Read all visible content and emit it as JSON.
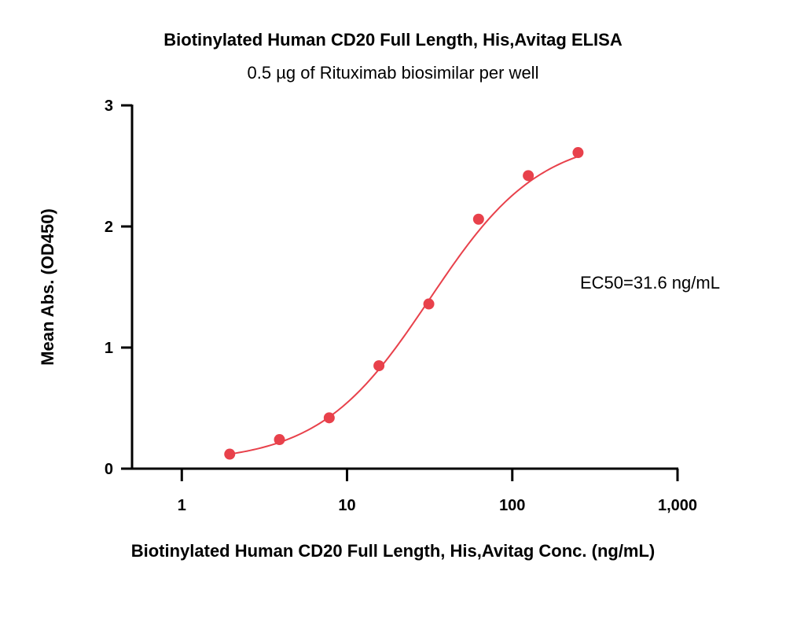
{
  "chart_data": {
    "type": "scatter",
    "title": "Biotinylated Human CD20 Full Length, His,Avitag ELISA",
    "subtitle": "0.5 µg of Rituximab biosimilar per well",
    "xlabel": "Biotinylated Human CD20 Full Length, His,Avitag Conc. (ng/mL)",
    "ylabel": "Mean Abs. (OD450)",
    "x_scale": "log",
    "xlim": [
      0.5,
      1000
    ],
    "ylim": [
      0,
      3
    ],
    "x_ticks": [
      1,
      10,
      100,
      1000
    ],
    "x_tick_labels": [
      "1",
      "10",
      "100",
      "1,000"
    ],
    "y_ticks": [
      0,
      1,
      2,
      3
    ],
    "y_tick_labels": [
      "0",
      "1",
      "2",
      "3"
    ],
    "grid": false,
    "series": [
      {
        "color": "#e8414b",
        "x": [
          1.95,
          3.9,
          7.8,
          15.6,
          31.25,
          62.5,
          125,
          250
        ],
        "y": [
          0.12,
          0.24,
          0.42,
          0.85,
          1.36,
          2.06,
          2.42,
          2.61
        ],
        "fit": "4PL",
        "fit_params": {
          "bottom": 0.05,
          "top": 2.75,
          "ec50": 31.6,
          "hill": 1.3
        }
      }
    ],
    "annotations": [
      {
        "text": "EC50=31.6 ng/mL"
      }
    ]
  }
}
